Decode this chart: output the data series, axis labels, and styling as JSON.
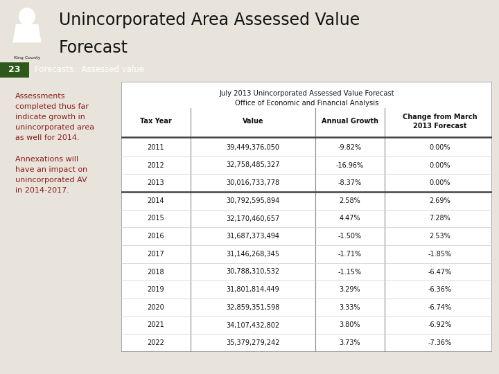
{
  "title_line1": "Unincorporated Area Assessed Value",
  "title_line2": "Forecast",
  "slide_number": "23",
  "banner_text": "Forecasts:  Assessed value",
  "banner_color": "#4a7c2f",
  "banner_number_bg": "#2d5a1b",
  "bg_color": "#e8e4dc",
  "left_box_color": "#b5aa96",
  "left_text_lines": [
    "Assessments",
    "completed thus far",
    "indicate growth in",
    "unincorporated area",
    "as well for 2014.",
    "",
    "Annexations will",
    "have an impact on",
    "unincorporated AV",
    "in 2014-2017."
  ],
  "left_text_color": "#8b1a1a",
  "table_title1": "July 2013 Unincorporated Assessed Value Forecast",
  "table_title2": "Office of Economic and Financial Analysis",
  "col_headers": [
    "Tax Year",
    "Value",
    "Annual Growth",
    "Change from March\n2013 Forecast"
  ],
  "table_data": [
    [
      "2011",
      "39,449,376,050",
      "-9.82%",
      "0.00%"
    ],
    [
      "2012",
      "32,758,485,327",
      "-16.96%",
      "0.00%"
    ],
    [
      "2013",
      "30,016,733,778",
      "-8.37%",
      "0.00%"
    ],
    [
      "2014",
      "30,792,595,894",
      "2.58%",
      "2.69%"
    ],
    [
      "2015",
      "32,170,460,657",
      "4.47%",
      "7.28%"
    ],
    [
      "2016",
      "31,687,373,494",
      "-1.50%",
      "2.53%"
    ],
    [
      "2017",
      "31,146,268,345",
      "-1.71%",
      "-1.85%"
    ],
    [
      "2018",
      "30,788,310,532",
      "-1.15%",
      "-6.47%"
    ],
    [
      "2019",
      "31,801,814,449",
      "3.29%",
      "-6.36%"
    ],
    [
      "2020",
      "32,859,351,598",
      "3.33%",
      "-6.74%"
    ],
    [
      "2021",
      "34,107,432,802",
      "3.80%",
      "-6.92%"
    ],
    [
      "2022",
      "35,379,279,242",
      "3.73%",
      "-7.36%"
    ]
  ],
  "thick_line_after_row": 2
}
